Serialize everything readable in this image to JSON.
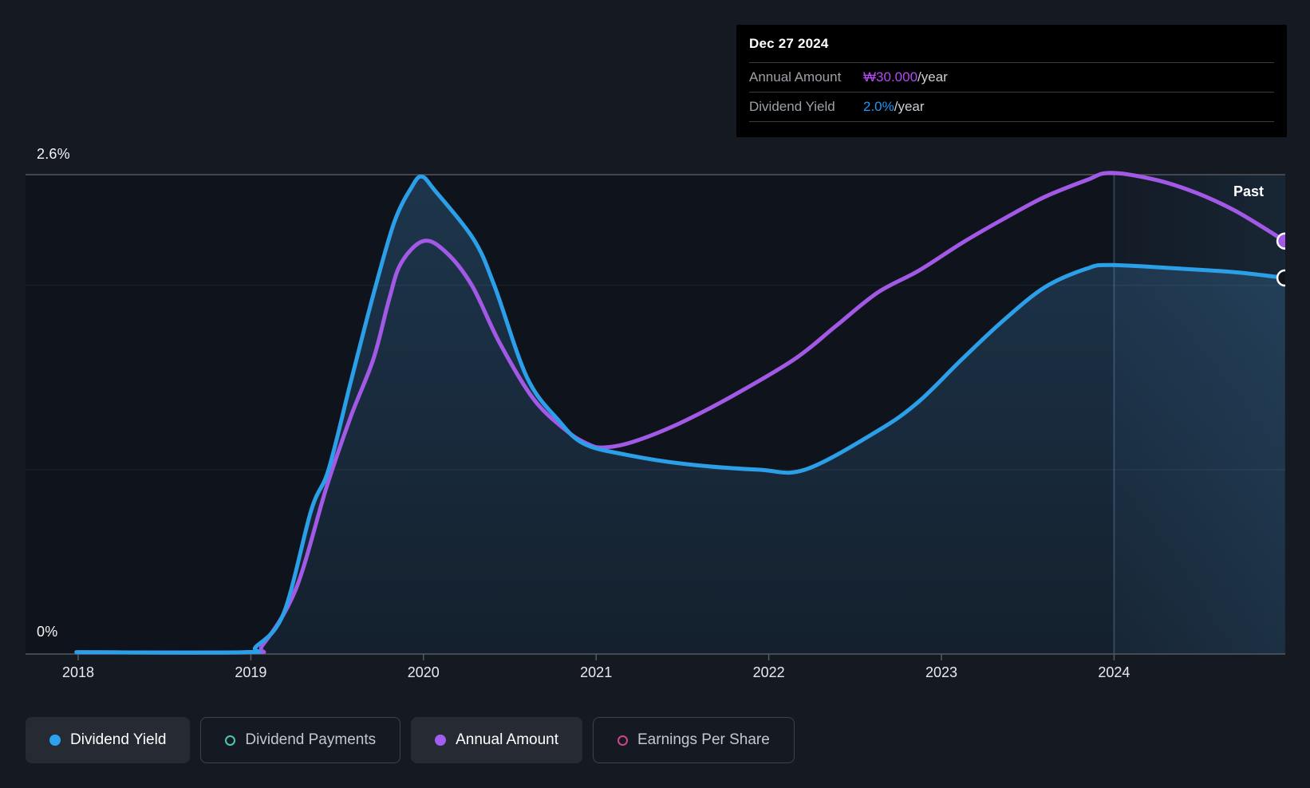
{
  "tooltip": {
    "date": "Dec 27 2024",
    "rows": [
      {
        "label": "Annual Amount",
        "value": "₩30.000",
        "suffix": "/year",
        "color": "#b44af2"
      },
      {
        "label": "Dividend Yield",
        "value": "2.0%",
        "suffix": "/year",
        "color": "#2196f3"
      }
    ]
  },
  "chart": {
    "past_label": "Past",
    "y_axis": {
      "top_label": "2.6%",
      "bottom_label": "0%"
    },
    "x_axis": {
      "years": [
        "2018",
        "2019",
        "2020",
        "2021",
        "2022",
        "2023",
        "2024"
      ]
    }
  },
  "legend": {
    "items": [
      {
        "label": "Dividend Yield",
        "color": "#2da1ee",
        "marker": "filled",
        "active": true
      },
      {
        "label": "Dividend Payments",
        "color": "#4ac8b4",
        "marker": "open",
        "active": false
      },
      {
        "label": "Annual Amount",
        "color": "#a35df0",
        "marker": "filled",
        "active": true
      },
      {
        "label": "Earnings Per Share",
        "color": "#cf4490",
        "marker": "open",
        "active": false
      }
    ]
  },
  "colors": {
    "background": "#151a22",
    "plot_background": "#0f141c",
    "dividend_yield_line": "#2c9fe9",
    "annual_amount_line": "#a259e6",
    "tooltip_background": "#000000",
    "gridline_major": "#53585f",
    "gridline_minor": "rgba(255,255,255,0.07)",
    "axis_line": "#545a61",
    "today_line": "rgba(125,175,225,0.27)"
  },
  "chart_data": {
    "type": "area",
    "title": "Dividend yield history",
    "x_range": [
      2017.7,
      2025.0
    ],
    "ylim": [
      0,
      2.6
    ],
    "y_unit": "%",
    "gridlines_pct": [
      1.0,
      2.0,
      2.6
    ],
    "today_line_year": 2024.0,
    "annotations": {
      "past_label": "Past",
      "hover_date": "Dec 27 2024",
      "hover_dividend_yield": "2.0%/year",
      "hover_annual_amount": "₩30.000/year"
    },
    "series": [
      {
        "name": "Annual Amount",
        "color": "#a259e6",
        "unit": "KRW (normalized to yield axis, end = ₩30.000/year)",
        "endpoint_marker": "filled",
        "points": [
          [
            2017.99,
            0.01
          ],
          [
            2018.98,
            0.01
          ],
          [
            2019.07,
            0.05
          ],
          [
            2019.26,
            0.35
          ],
          [
            2019.44,
            0.91
          ],
          [
            2019.58,
            1.29
          ],
          [
            2019.71,
            1.6
          ],
          [
            2019.8,
            1.92
          ],
          [
            2019.87,
            2.12
          ],
          [
            2020.0,
            2.24
          ],
          [
            2020.13,
            2.18
          ],
          [
            2020.28,
            2.0
          ],
          [
            2020.44,
            1.69
          ],
          [
            2020.64,
            1.38
          ],
          [
            2020.83,
            1.21
          ],
          [
            2020.95,
            1.14
          ],
          [
            2021.04,
            1.12
          ],
          [
            2021.21,
            1.15
          ],
          [
            2021.48,
            1.25
          ],
          [
            2021.79,
            1.4
          ],
          [
            2022.15,
            1.6
          ],
          [
            2022.39,
            1.78
          ],
          [
            2022.63,
            1.96
          ],
          [
            2022.87,
            2.08
          ],
          [
            2023.12,
            2.23
          ],
          [
            2023.36,
            2.36
          ],
          [
            2023.6,
            2.48
          ],
          [
            2023.84,
            2.57
          ],
          [
            2023.98,
            2.61
          ],
          [
            2024.25,
            2.57
          ],
          [
            2024.48,
            2.5
          ],
          [
            2024.71,
            2.4
          ],
          [
            2024.99,
            2.24
          ]
        ]
      },
      {
        "name": "Dividend Yield",
        "color": "#2c9fe9",
        "unit": "%",
        "endpoint_marker": "open",
        "area_fill": true,
        "points": [
          [
            2017.99,
            0.01
          ],
          [
            2018.96,
            0.01
          ],
          [
            2019.03,
            0.04
          ],
          [
            2019.19,
            0.22
          ],
          [
            2019.35,
            0.78
          ],
          [
            2019.45,
            1.0
          ],
          [
            2019.58,
            1.48
          ],
          [
            2019.71,
            1.95
          ],
          [
            2019.83,
            2.34
          ],
          [
            2019.93,
            2.53
          ],
          [
            2019.99,
            2.59
          ],
          [
            2020.07,
            2.51
          ],
          [
            2020.29,
            2.25
          ],
          [
            2020.41,
            2.0
          ],
          [
            2020.6,
            1.5
          ],
          [
            2020.78,
            1.27
          ],
          [
            2020.93,
            1.14
          ],
          [
            2021.18,
            1.08
          ],
          [
            2021.52,
            1.03
          ],
          [
            2021.94,
            1.0
          ],
          [
            2022.21,
            1.0
          ],
          [
            2022.63,
            1.21
          ],
          [
            2022.87,
            1.37
          ],
          [
            2023.12,
            1.6
          ],
          [
            2023.36,
            1.81
          ],
          [
            2023.6,
            1.99
          ],
          [
            2023.84,
            2.09
          ],
          [
            2023.98,
            2.11
          ],
          [
            2024.39,
            2.09
          ],
          [
            2024.71,
            2.07
          ],
          [
            2024.99,
            2.04
          ]
        ]
      }
    ]
  }
}
